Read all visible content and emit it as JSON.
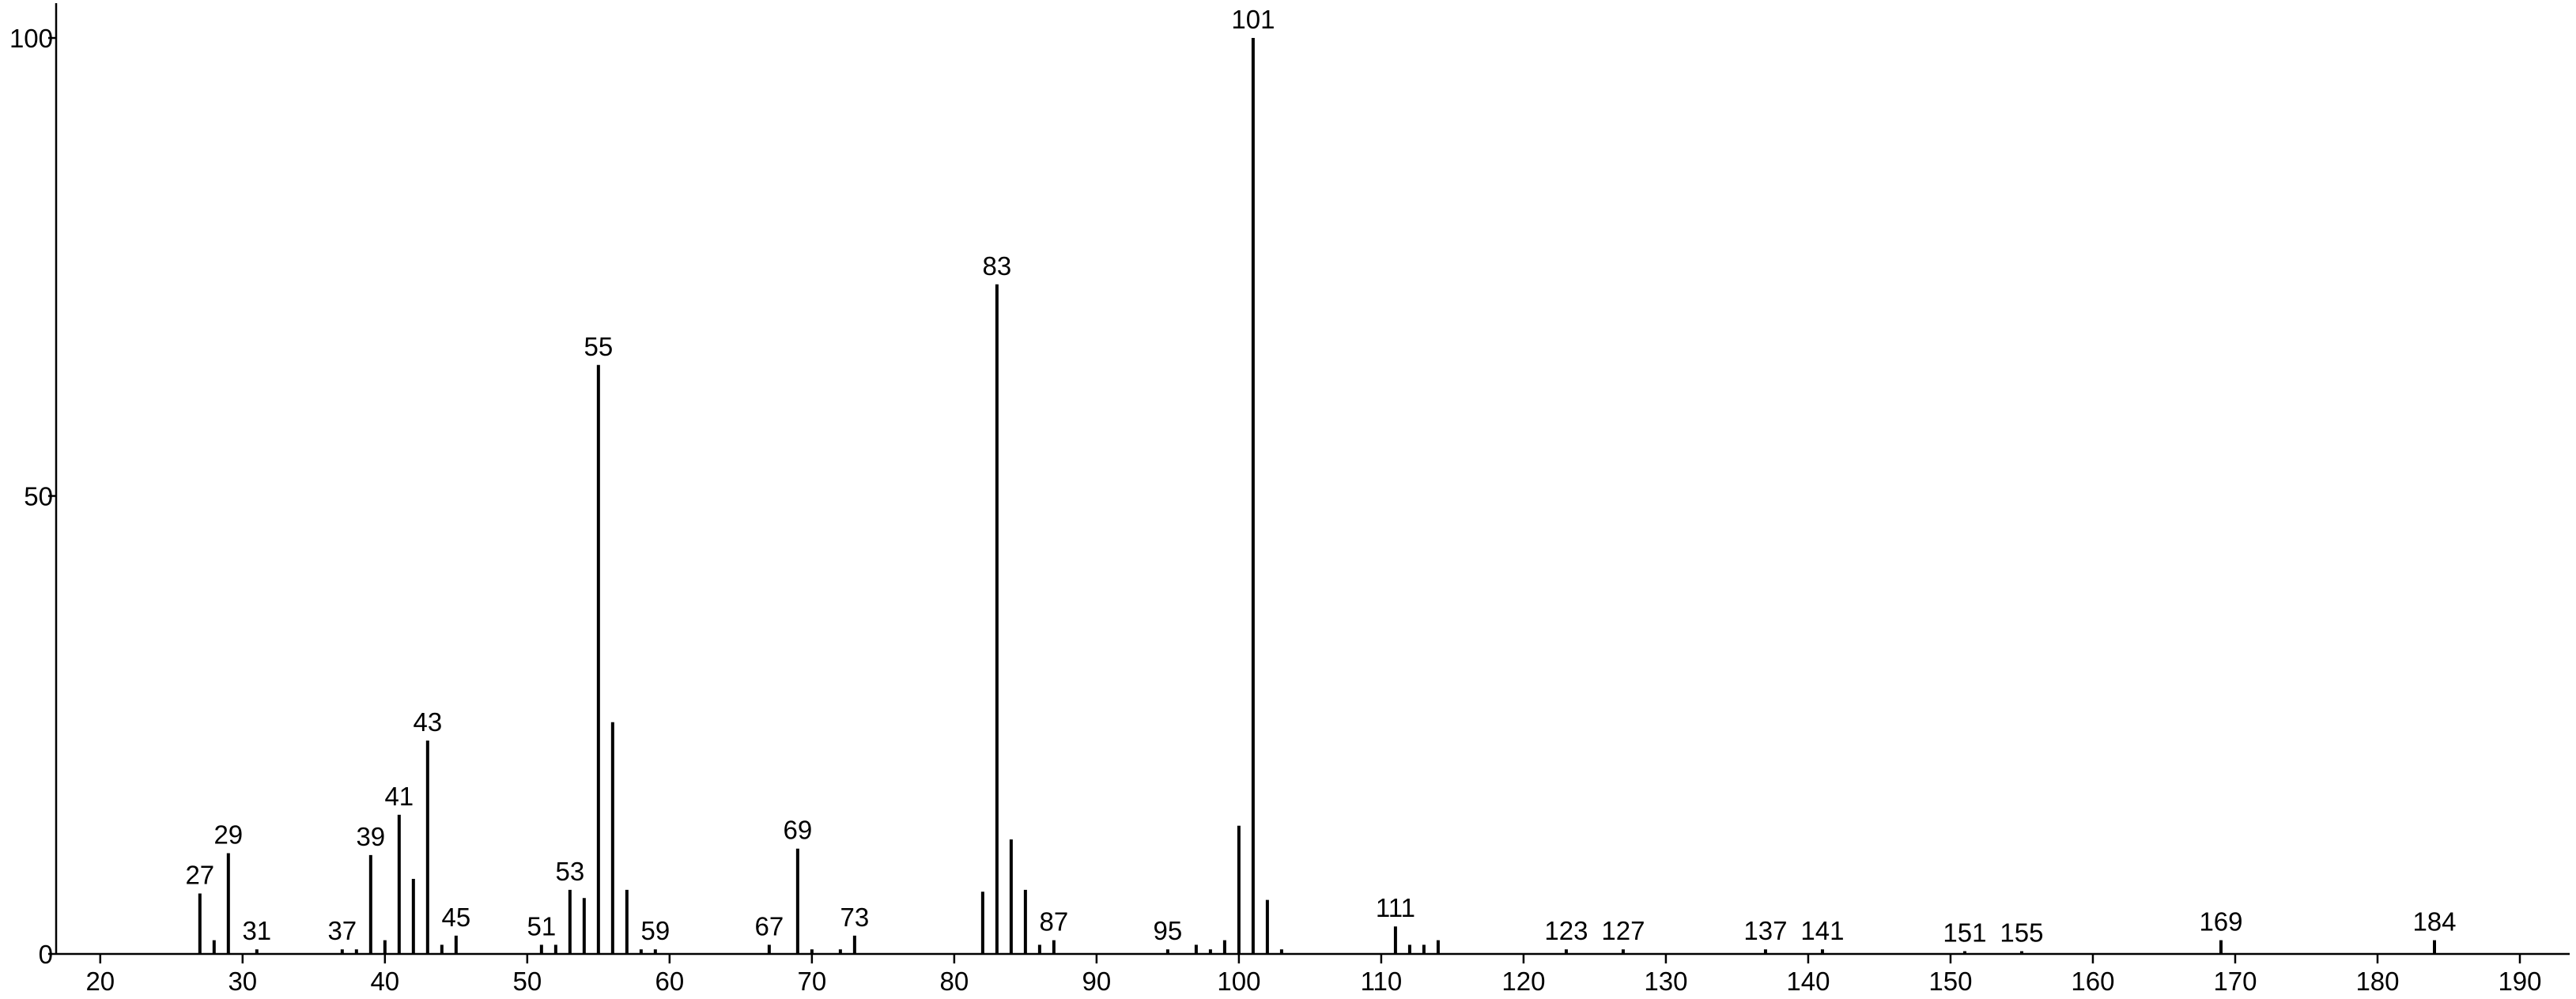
{
  "chart_data": {
    "type": "spectrum",
    "color": "#000000",
    "x": [
      27,
      28,
      29,
      31,
      37,
      38,
      39,
      40,
      41,
      42,
      43,
      44,
      45,
      51,
      52,
      53,
      54,
      55,
      56,
      57,
      58,
      59,
      67,
      69,
      70,
      72,
      73,
      82,
      83,
      84,
      85,
      86,
      87,
      95,
      97,
      98,
      99,
      100,
      101,
      102,
      103,
      111,
      112,
      113,
      114,
      123,
      127,
      137,
      141,
      151,
      155,
      169,
      184
    ],
    "values": [
      6.6,
      1.5,
      11,
      0.5,
      0.5,
      0.5,
      10.8,
      1.5,
      15.2,
      8.2,
      23.3,
      1,
      2,
      1,
      1,
      7,
      6.1,
      64.3,
      25.3,
      7,
      0.5,
      0.5,
      1,
      11.5,
      0.5,
      0.5,
      2,
      6.8,
      73.1,
      12.5,
      7,
      1,
      1.5,
      0.5,
      1,
      0.5,
      1.5,
      14,
      100,
      5.9,
      0.5,
      3,
      1,
      1,
      1.5,
      0.5,
      0.5,
      0.5,
      0.5,
      0.3,
      0.3,
      1.5,
      1.5
    ],
    "peak_labels": [
      27,
      null,
      29,
      31,
      37,
      null,
      39,
      null,
      41,
      null,
      43,
      null,
      45,
      51,
      null,
      53,
      null,
      55,
      null,
      null,
      null,
      59,
      67,
      69,
      null,
      null,
      73,
      null,
      83,
      null,
      null,
      null,
      87,
      95,
      null,
      null,
      null,
      null,
      101,
      null,
      null,
      111,
      null,
      null,
      null,
      123,
      127,
      137,
      141,
      151,
      155,
      169,
      184
    ],
    "xlim": [
      16.9,
      193.5
    ],
    "ylim": [
      0,
      103.8
    ],
    "xticks": [
      20,
      30,
      40,
      50,
      60,
      70,
      80,
      90,
      100,
      110,
      120,
      130,
      140,
      150,
      160,
      170,
      180,
      190
    ],
    "yticks": [
      0,
      50,
      100
    ]
  }
}
